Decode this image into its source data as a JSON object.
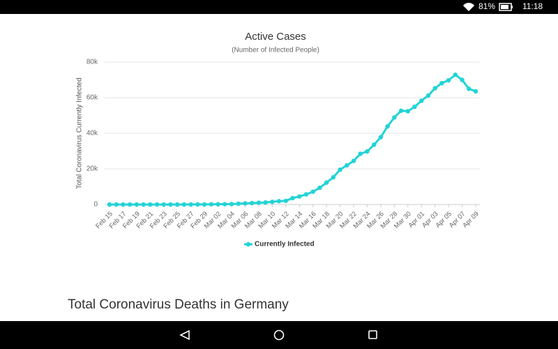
{
  "status_bar": {
    "battery": "81%",
    "time": "11:18"
  },
  "chart_data": {
    "type": "line",
    "title": "Active Cases",
    "subtitle": "(Number of Infected People)",
    "y_label": "Total Coronavirus Currently Infected",
    "categories": [
      "Feb 15",
      null,
      "Feb 17",
      null,
      "Feb 19",
      null,
      "Feb 21",
      null,
      "Feb 23",
      null,
      "Feb 25",
      null,
      "Feb 27",
      null,
      "Feb 29",
      null,
      "Mar 02",
      null,
      "Mar 04",
      null,
      "Mar 06",
      null,
      "Mar 08",
      null,
      "Mar 10",
      null,
      "Mar 12",
      null,
      "Mar 14",
      null,
      "Mar 16",
      null,
      "Mar 18",
      null,
      "Mar 20",
      null,
      "Mar 22",
      null,
      "Mar 24",
      null,
      "Mar 26",
      null,
      "Mar 28",
      null,
      "Mar 30",
      null,
      "Apr 01",
      null,
      "Apr 03",
      null,
      "Apr 05",
      null,
      "Apr 07",
      null,
      "Apr 09"
    ],
    "series": [
      {
        "name": "Currently Infected",
        "color": "#22d3d6",
        "values": [
          10,
          10,
          10,
          10,
          10,
          10,
          10,
          10,
          10,
          10,
          12,
          20,
          35,
          45,
          60,
          115,
          145,
          180,
          250,
          460,
          640,
          780,
          1000,
          1150,
          1500,
          1880,
          2050,
          3600,
          4500,
          5700,
          7200,
          9400,
          12300,
          15300,
          19600,
          22000,
          24500,
          28500,
          29800,
          33600,
          37800,
          43900,
          48900,
          52700,
          52400,
          54900,
          58300,
          61200,
          65300,
          68200,
          69800,
          72900,
          70000,
          65000,
          63600
        ]
      }
    ],
    "ylim": [
      0,
      80000
    ],
    "yticks": [
      0,
      {
        "value": 20000,
        "label": "20k"
      },
      {
        "value": 40000,
        "label": "40k"
      },
      {
        "value": 60000,
        "label": "60k"
      },
      {
        "value": 80000,
        "label": "80k"
      }
    ],
    "grid": true,
    "legend": "bottom"
  },
  "heading": "Total Coronavirus Deaths in Germany"
}
